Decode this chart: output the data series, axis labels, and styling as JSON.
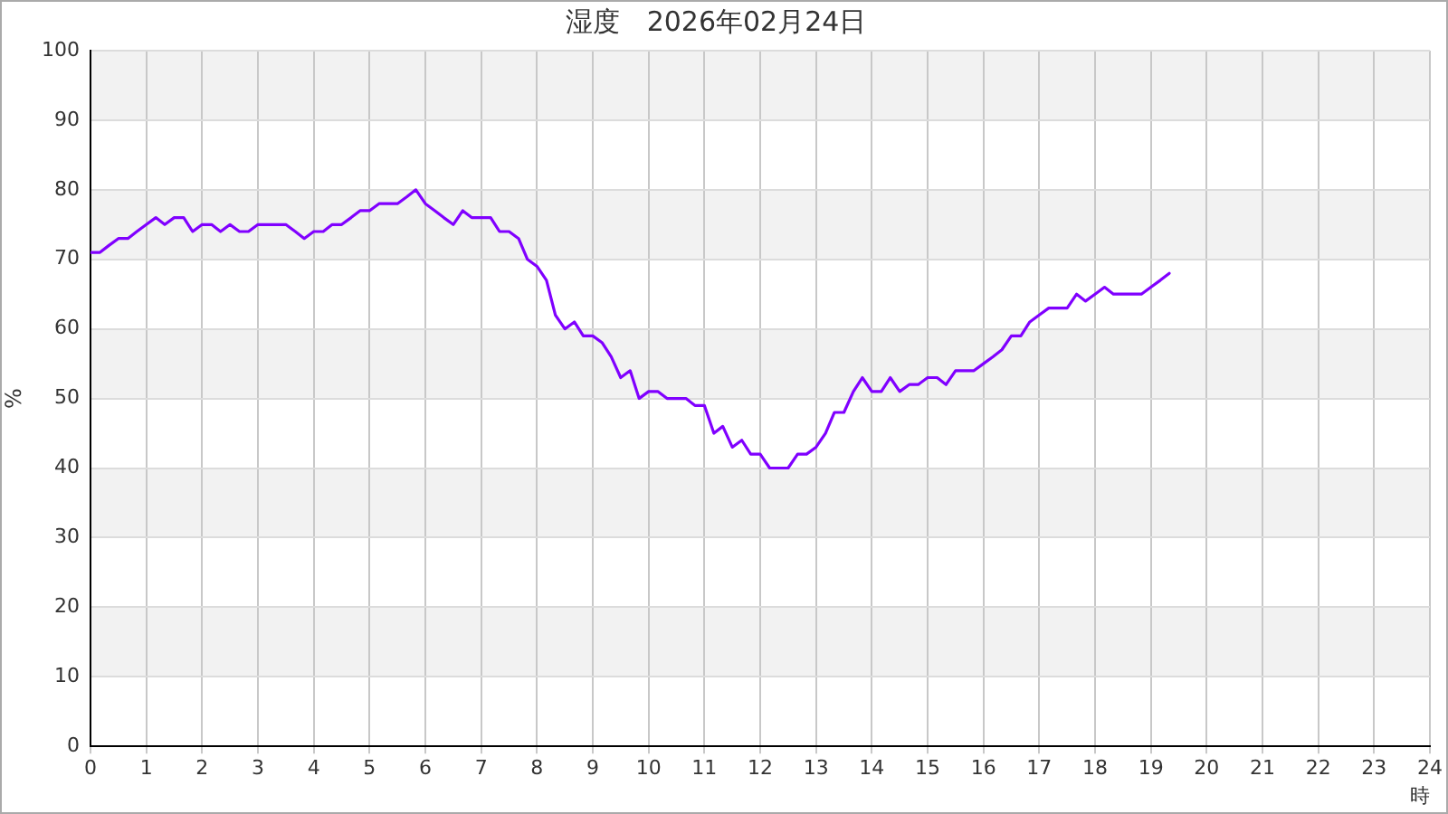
{
  "chart_data": {
    "type": "line",
    "title": "湿度　2026年02月24日",
    "xlabel": "時",
    "ylabel": "%",
    "x": [
      0,
      0.17,
      0.33,
      0.5,
      0.67,
      0.83,
      1,
      1.17,
      1.33,
      1.5,
      1.67,
      1.83,
      2,
      2.17,
      2.33,
      2.5,
      2.67,
      2.83,
      3,
      3.17,
      3.33,
      3.5,
      3.67,
      3.83,
      4,
      4.17,
      4.33,
      4.5,
      4.67,
      4.83,
      5,
      5.17,
      5.33,
      5.5,
      5.67,
      5.83,
      6,
      6.17,
      6.33,
      6.5,
      6.67,
      6.83,
      7,
      7.17,
      7.33,
      7.5,
      7.67,
      7.83,
      8,
      8.17,
      8.33,
      8.5,
      8.67,
      8.83,
      9,
      9.17,
      9.33,
      9.5,
      9.67,
      9.83,
      10,
      10.17,
      10.33,
      10.5,
      10.67,
      10.83,
      11,
      11.17,
      11.33,
      11.5,
      11.67,
      11.83,
      12,
      12.17,
      12.33,
      12.5,
      12.67,
      12.83,
      13,
      13.17,
      13.33,
      13.5,
      13.67,
      13.83,
      14,
      14.17,
      14.33,
      14.5,
      14.67,
      14.83,
      15,
      15.17,
      15.33,
      15.5,
      15.67,
      15.83,
      16,
      16.17,
      16.33,
      16.5,
      16.67,
      16.83,
      17,
      17.17,
      17.33,
      17.5,
      17.67,
      17.83,
      18,
      18.17,
      18.33,
      18.5,
      18.67,
      18.83,
      19,
      19.17,
      19.33
    ],
    "series": [
      {
        "color": "#8000ff",
        "values": [
          71,
          71,
          72,
          73,
          73,
          74,
          75,
          76,
          75,
          76,
          76,
          74,
          75,
          75,
          74,
          75,
          74,
          74,
          75,
          75,
          75,
          75,
          74,
          73,
          74,
          74,
          75,
          75,
          76,
          77,
          77,
          78,
          78,
          78,
          79,
          80,
          78,
          77,
          76,
          75,
          77,
          76,
          76,
          76,
          74,
          74,
          73,
          70,
          69,
          67,
          62,
          60,
          61,
          59,
          59,
          58,
          56,
          53,
          54,
          50,
          51,
          51,
          50,
          50,
          50,
          49,
          49,
          45,
          46,
          43,
          44,
          42,
          42,
          40,
          40,
          40,
          42,
          42,
          43,
          45,
          48,
          48,
          51,
          53,
          51,
          51,
          53,
          51,
          52,
          52,
          53,
          53,
          52,
          54,
          54,
          54,
          55,
          56,
          57,
          59,
          59,
          61,
          62,
          63,
          63,
          63,
          65,
          64,
          65,
          66,
          65,
          65,
          65,
          65,
          66,
          67,
          68
        ]
      }
    ],
    "xlim": [
      0,
      24
    ],
    "xticks": [
      0,
      1,
      2,
      3,
      4,
      5,
      6,
      7,
      8,
      9,
      10,
      11,
      12,
      13,
      14,
      15,
      16,
      17,
      18,
      19,
      20,
      21,
      22,
      23,
      24
    ],
    "ylim": [
      0,
      100
    ],
    "yticks": [
      0,
      10,
      20,
      30,
      40,
      50,
      60,
      70,
      80,
      90,
      100
    ],
    "grid": true,
    "line_style": "solid"
  }
}
